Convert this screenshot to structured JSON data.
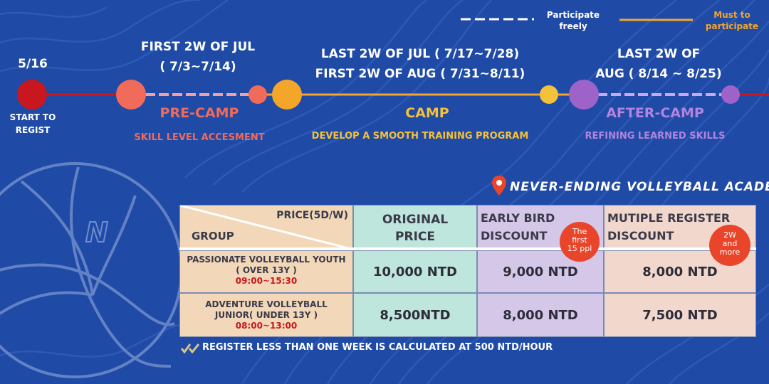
{
  "legend": {
    "freely_label": "Participate freely",
    "freely_line1": "Participate",
    "freely_line2": "freely",
    "must_line1": "Must to",
    "must_line2": "participate"
  },
  "timeline": {
    "start": {
      "date": "5/16",
      "label_line1": "START TO",
      "label_line2": "REGIST"
    },
    "pre_camp": {
      "date_line1": "FIRST 2W OF JUL",
      "date_line2": "( 7/3~7/14)",
      "title": "PRE-CAMP",
      "subtitle": "SKILL LEVEL ACCESMENT"
    },
    "camp": {
      "date_line1": "LAST 2W OF JUL ( 7/17~7/28)",
      "date_line2": "FIRST 2W OF AUG ( 7/31~8/11)",
      "title": "CAMP",
      "subtitle": "DEVELOP A SMOOTH TRAINING PROGRAM"
    },
    "after_camp": {
      "date_line1": "LAST 2W OF",
      "date_line2": "AUG ( 8/14 ~ 8/25)",
      "title": "AFTER-CAMP",
      "subtitle": "REFINING LEARNED SKILLS"
    }
  },
  "academy": {
    "name": "Never-Ending Volleyball Academy"
  },
  "table": {
    "header": {
      "price_label": "PRICE(5D/W)",
      "group_label": "GROUP",
      "original_line1": "ORIGINAL",
      "original_line2": "PRICE",
      "early_line1": "EARLY BIRD",
      "early_line2": "DISCOUNT",
      "early_badge_line1": "The",
      "early_badge_line2": "first",
      "early_badge_line3": "15  ppl",
      "multi_line1": "MUTIPLE REGISTER",
      "multi_line2": "DISCOUNT",
      "multi_badge_line1": "2W",
      "multi_badge_line2": "and",
      "multi_badge_line3": "more"
    },
    "rows": [
      {
        "name_line1": "PASSIONATE VOLLEYBALL YOUTH",
        "name_line2": "( OVER 13Y )",
        "time": "09:00~15:30",
        "original": "10,000 NTD",
        "early": "9,000 NTD",
        "multi": "8,000 NTD"
      },
      {
        "name_line1": "ADVENTURE VOLLEYBALL",
        "name_line2": "JUNIOR( UNDER 13Y )",
        "time": "08:00~13:00",
        "original": "8,500NTD",
        "early": "8,000 NTD",
        "multi": "7,500 NTD"
      }
    ]
  },
  "note": {
    "text": "REGISTER LESS THAN ONE WEEK IS CALCULATED AT 500 NTD/HOUR"
  },
  "colors": {
    "background": "#1f4aa6",
    "start": "#c8171e",
    "pre_camp": "#f06b5a",
    "camp": "#f4a62a",
    "after_camp": "#9d63c9",
    "pin": "#e8452b"
  }
}
